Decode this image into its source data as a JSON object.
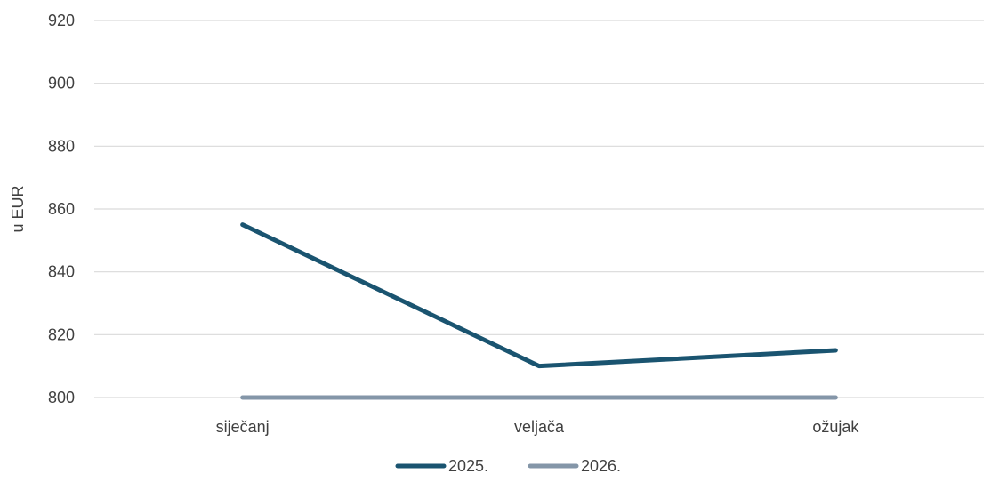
{
  "chart_data": {
    "type": "line",
    "title": "",
    "xlabel": "",
    "ylabel": "u EUR",
    "categories": [
      "siječanj",
      "veljača",
      "ožujak"
    ],
    "ylim": [
      800,
      920
    ],
    "yticks": [
      800,
      820,
      840,
      860,
      880,
      900,
      920
    ],
    "grid": true,
    "legend_position": "bottom",
    "series": [
      {
        "name": "2025.",
        "values": [
          855,
          810,
          815
        ],
        "color": "#1a5470"
      },
      {
        "name": "2026.",
        "values": [
          800,
          800,
          800
        ],
        "color": "#8496a8"
      }
    ],
    "gridline_color": "#d9d9d9",
    "text_color": "#404040"
  }
}
